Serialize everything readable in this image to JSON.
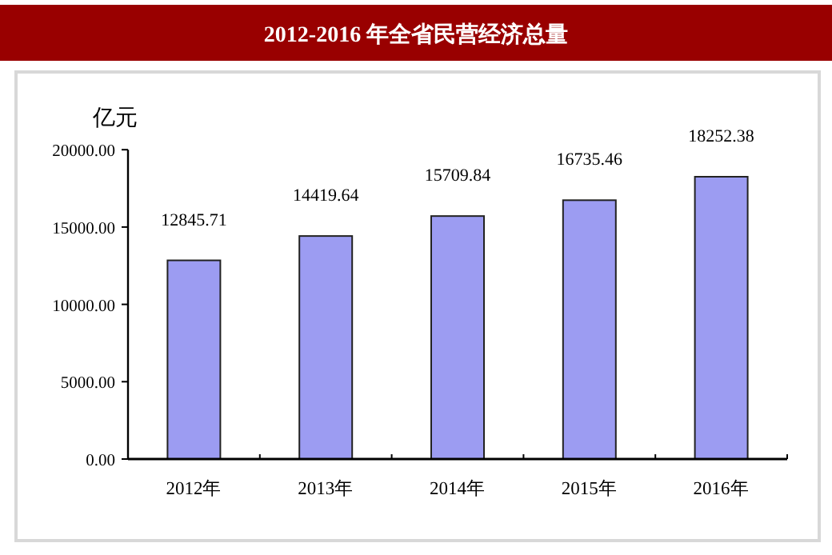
{
  "chart_data": {
    "type": "bar",
    "title": "2012-2016 年全省民营经济总量",
    "ylabel": "亿元",
    "categories": [
      "2012年",
      "2013年",
      "2014年",
      "2015年",
      "2016年"
    ],
    "values": [
      12845.71,
      14419.64,
      15709.84,
      16735.46,
      18252.38
    ],
    "color": "#9c9cf2",
    "ylim": [
      0,
      20000
    ],
    "yticks": [
      {
        "value": 0,
        "label": "0.00"
      },
      {
        "value": 5000,
        "label": "5000.00"
      },
      {
        "value": 10000,
        "label": "10000.00"
      },
      {
        "value": 15000,
        "label": "15000.00"
      },
      {
        "value": 20000,
        "label": "20000.00"
      }
    ],
    "data_labels": true,
    "grid": false
  }
}
